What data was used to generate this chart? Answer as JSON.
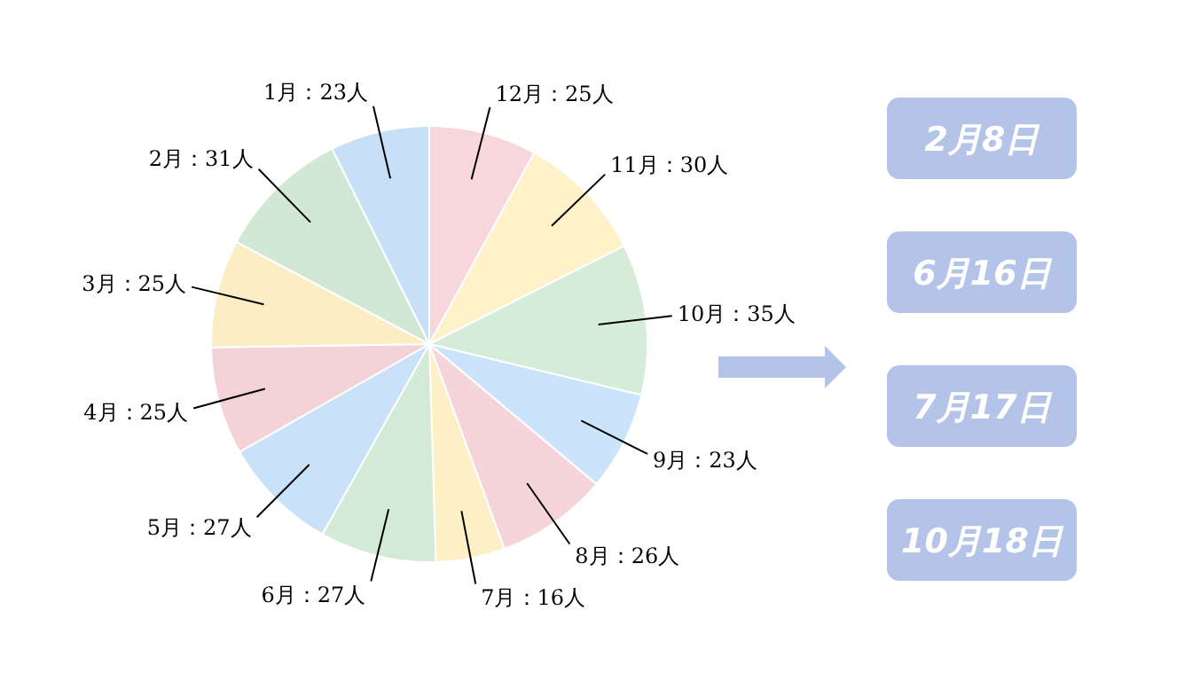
{
  "chart_data": {
    "type": "pie",
    "categories": [
      "12月",
      "11月",
      "10月",
      "9月",
      "8月",
      "7月",
      "6月",
      "5月",
      "4月",
      "3月",
      "2月",
      "1月"
    ],
    "values": [
      25,
      30,
      35,
      23,
      26,
      16,
      27,
      27,
      25,
      25,
      31,
      23
    ],
    "value_labels": [
      "：25人",
      "：30人",
      "：35人",
      "：23人",
      "：26人",
      "：16人",
      "：27人",
      "：27人",
      "：25人",
      "：25人",
      "：31人",
      "：23人"
    ],
    "colors": [
      "#f8d7dc",
      "#fff2c8",
      "#d5ecd8",
      "#cce4fb",
      "#f6d5da",
      "#fdf0c6",
      "#d3ead6",
      "#cae2f9",
      "#f4d3d8",
      "#fbeec4",
      "#d1e8d4",
      "#c8e0f7"
    ],
    "annotations": [
      "2月8日",
      "6月16日",
      "7月17日",
      "10月18日"
    ]
  }
}
